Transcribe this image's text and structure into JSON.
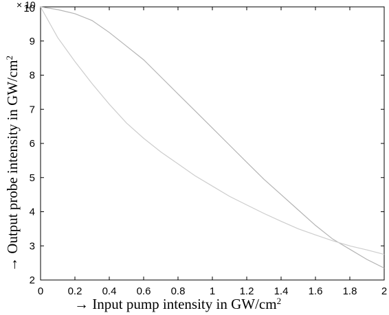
{
  "chart_data": {
    "type": "line",
    "xlabel": "→ Input pump intensity in GW/cm",
    "xlabel_superscript": "2",
    "ylabel": "→ Output probe intensity in GW/cm",
    "ylabel_superscript": "2",
    "y_multiplier": "× 10",
    "xlim": [
      0,
      2
    ],
    "ylim": [
      2,
      10
    ],
    "x_ticks": [
      "0",
      "0.2",
      "0.4",
      "0.6",
      "0.8",
      "1",
      "1.2",
      "1.4",
      "1.6",
      "1.8",
      "2"
    ],
    "y_ticks": [
      "2",
      "3",
      "4",
      "5",
      "6",
      "7",
      "8",
      "9",
      "10"
    ],
    "grid": false,
    "series": [
      {
        "color": "#b4b4b4",
        "x": [
          0,
          0.1,
          0.2,
          0.3,
          0.4,
          0.5,
          0.6,
          0.7,
          0.8,
          0.9,
          1.0,
          1.1,
          1.2,
          1.3,
          1.4,
          1.5,
          1.6,
          1.7,
          1.8,
          1.9,
          2.0
        ],
        "y": [
          10.0,
          9.92,
          9.8,
          9.6,
          9.25,
          8.85,
          8.45,
          7.95,
          7.45,
          6.95,
          6.45,
          5.95,
          5.45,
          4.95,
          4.5,
          4.05,
          3.6,
          3.2,
          2.9,
          2.6,
          2.35
        ]
      },
      {
        "color": "#cdcdcd",
        "x": [
          0,
          0.1,
          0.2,
          0.3,
          0.4,
          0.5,
          0.6,
          0.7,
          0.8,
          0.9,
          1.0,
          1.1,
          1.2,
          1.3,
          1.4,
          1.5,
          1.6,
          1.7,
          1.8,
          1.9,
          2.0
        ],
        "y": [
          10.0,
          9.1,
          8.4,
          7.75,
          7.15,
          6.6,
          6.15,
          5.75,
          5.4,
          5.05,
          4.75,
          4.45,
          4.2,
          3.95,
          3.72,
          3.5,
          3.32,
          3.15,
          3.0,
          2.88,
          2.75
        ]
      }
    ]
  }
}
